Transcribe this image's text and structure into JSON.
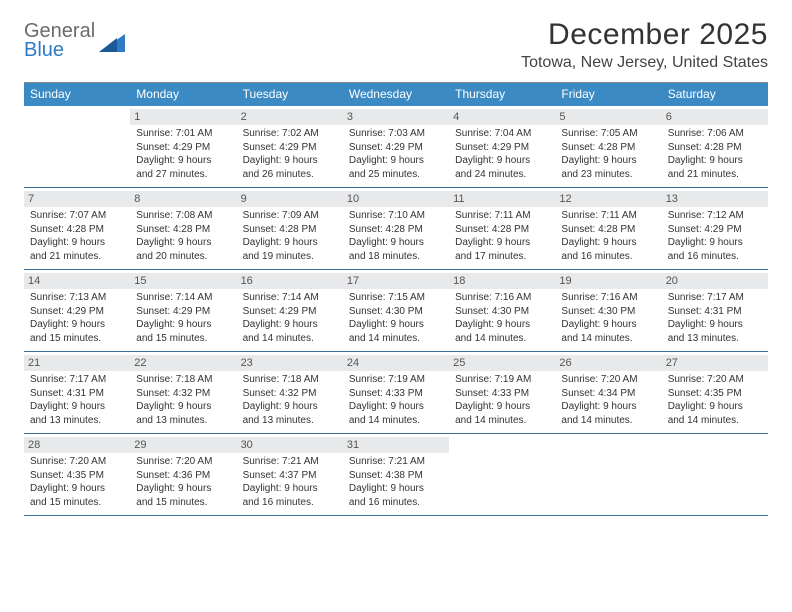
{
  "logo": {
    "line1": "General",
    "line2": "Blue"
  },
  "title": "December 2025",
  "subtitle": "Totowa, New Jersey, United States",
  "colors": {
    "header_bg": "#3b8ac4",
    "daynum_bg": "#e7e9eb",
    "week_border": "#3b6f99",
    "logo_gray": "#6b6b6b",
    "logo_blue": "#2f7bc4"
  },
  "day_headers": [
    "Sunday",
    "Monday",
    "Tuesday",
    "Wednesday",
    "Thursday",
    "Friday",
    "Saturday"
  ],
  "weeks": [
    [
      {
        "n": "",
        "sr": "",
        "ss": "",
        "dl": ""
      },
      {
        "n": "1",
        "sr": "Sunrise: 7:01 AM",
        "ss": "Sunset: 4:29 PM",
        "dl": "Daylight: 9 hours and 27 minutes."
      },
      {
        "n": "2",
        "sr": "Sunrise: 7:02 AM",
        "ss": "Sunset: 4:29 PM",
        "dl": "Daylight: 9 hours and 26 minutes."
      },
      {
        "n": "3",
        "sr": "Sunrise: 7:03 AM",
        "ss": "Sunset: 4:29 PM",
        "dl": "Daylight: 9 hours and 25 minutes."
      },
      {
        "n": "4",
        "sr": "Sunrise: 7:04 AM",
        "ss": "Sunset: 4:29 PM",
        "dl": "Daylight: 9 hours and 24 minutes."
      },
      {
        "n": "5",
        "sr": "Sunrise: 7:05 AM",
        "ss": "Sunset: 4:28 PM",
        "dl": "Daylight: 9 hours and 23 minutes."
      },
      {
        "n": "6",
        "sr": "Sunrise: 7:06 AM",
        "ss": "Sunset: 4:28 PM",
        "dl": "Daylight: 9 hours and 21 minutes."
      }
    ],
    [
      {
        "n": "7",
        "sr": "Sunrise: 7:07 AM",
        "ss": "Sunset: 4:28 PM",
        "dl": "Daylight: 9 hours and 21 minutes."
      },
      {
        "n": "8",
        "sr": "Sunrise: 7:08 AM",
        "ss": "Sunset: 4:28 PM",
        "dl": "Daylight: 9 hours and 20 minutes."
      },
      {
        "n": "9",
        "sr": "Sunrise: 7:09 AM",
        "ss": "Sunset: 4:28 PM",
        "dl": "Daylight: 9 hours and 19 minutes."
      },
      {
        "n": "10",
        "sr": "Sunrise: 7:10 AM",
        "ss": "Sunset: 4:28 PM",
        "dl": "Daylight: 9 hours and 18 minutes."
      },
      {
        "n": "11",
        "sr": "Sunrise: 7:11 AM",
        "ss": "Sunset: 4:28 PM",
        "dl": "Daylight: 9 hours and 17 minutes."
      },
      {
        "n": "12",
        "sr": "Sunrise: 7:11 AM",
        "ss": "Sunset: 4:28 PM",
        "dl": "Daylight: 9 hours and 16 minutes."
      },
      {
        "n": "13",
        "sr": "Sunrise: 7:12 AM",
        "ss": "Sunset: 4:29 PM",
        "dl": "Daylight: 9 hours and 16 minutes."
      }
    ],
    [
      {
        "n": "14",
        "sr": "Sunrise: 7:13 AM",
        "ss": "Sunset: 4:29 PM",
        "dl": "Daylight: 9 hours and 15 minutes."
      },
      {
        "n": "15",
        "sr": "Sunrise: 7:14 AM",
        "ss": "Sunset: 4:29 PM",
        "dl": "Daylight: 9 hours and 15 minutes."
      },
      {
        "n": "16",
        "sr": "Sunrise: 7:14 AM",
        "ss": "Sunset: 4:29 PM",
        "dl": "Daylight: 9 hours and 14 minutes."
      },
      {
        "n": "17",
        "sr": "Sunrise: 7:15 AM",
        "ss": "Sunset: 4:30 PM",
        "dl": "Daylight: 9 hours and 14 minutes."
      },
      {
        "n": "18",
        "sr": "Sunrise: 7:16 AM",
        "ss": "Sunset: 4:30 PM",
        "dl": "Daylight: 9 hours and 14 minutes."
      },
      {
        "n": "19",
        "sr": "Sunrise: 7:16 AM",
        "ss": "Sunset: 4:30 PM",
        "dl": "Daylight: 9 hours and 14 minutes."
      },
      {
        "n": "20",
        "sr": "Sunrise: 7:17 AM",
        "ss": "Sunset: 4:31 PM",
        "dl": "Daylight: 9 hours and 13 minutes."
      }
    ],
    [
      {
        "n": "21",
        "sr": "Sunrise: 7:17 AM",
        "ss": "Sunset: 4:31 PM",
        "dl": "Daylight: 9 hours and 13 minutes."
      },
      {
        "n": "22",
        "sr": "Sunrise: 7:18 AM",
        "ss": "Sunset: 4:32 PM",
        "dl": "Daylight: 9 hours and 13 minutes."
      },
      {
        "n": "23",
        "sr": "Sunrise: 7:18 AM",
        "ss": "Sunset: 4:32 PM",
        "dl": "Daylight: 9 hours and 13 minutes."
      },
      {
        "n": "24",
        "sr": "Sunrise: 7:19 AM",
        "ss": "Sunset: 4:33 PM",
        "dl": "Daylight: 9 hours and 14 minutes."
      },
      {
        "n": "25",
        "sr": "Sunrise: 7:19 AM",
        "ss": "Sunset: 4:33 PM",
        "dl": "Daylight: 9 hours and 14 minutes."
      },
      {
        "n": "26",
        "sr": "Sunrise: 7:20 AM",
        "ss": "Sunset: 4:34 PM",
        "dl": "Daylight: 9 hours and 14 minutes."
      },
      {
        "n": "27",
        "sr": "Sunrise: 7:20 AM",
        "ss": "Sunset: 4:35 PM",
        "dl": "Daylight: 9 hours and 14 minutes."
      }
    ],
    [
      {
        "n": "28",
        "sr": "Sunrise: 7:20 AM",
        "ss": "Sunset: 4:35 PM",
        "dl": "Daylight: 9 hours and 15 minutes."
      },
      {
        "n": "29",
        "sr": "Sunrise: 7:20 AM",
        "ss": "Sunset: 4:36 PM",
        "dl": "Daylight: 9 hours and 15 minutes."
      },
      {
        "n": "30",
        "sr": "Sunrise: 7:21 AM",
        "ss": "Sunset: 4:37 PM",
        "dl": "Daylight: 9 hours and 16 minutes."
      },
      {
        "n": "31",
        "sr": "Sunrise: 7:21 AM",
        "ss": "Sunset: 4:38 PM",
        "dl": "Daylight: 9 hours and 16 minutes."
      },
      {
        "n": "",
        "sr": "",
        "ss": "",
        "dl": ""
      },
      {
        "n": "",
        "sr": "",
        "ss": "",
        "dl": ""
      },
      {
        "n": "",
        "sr": "",
        "ss": "",
        "dl": ""
      }
    ]
  ]
}
